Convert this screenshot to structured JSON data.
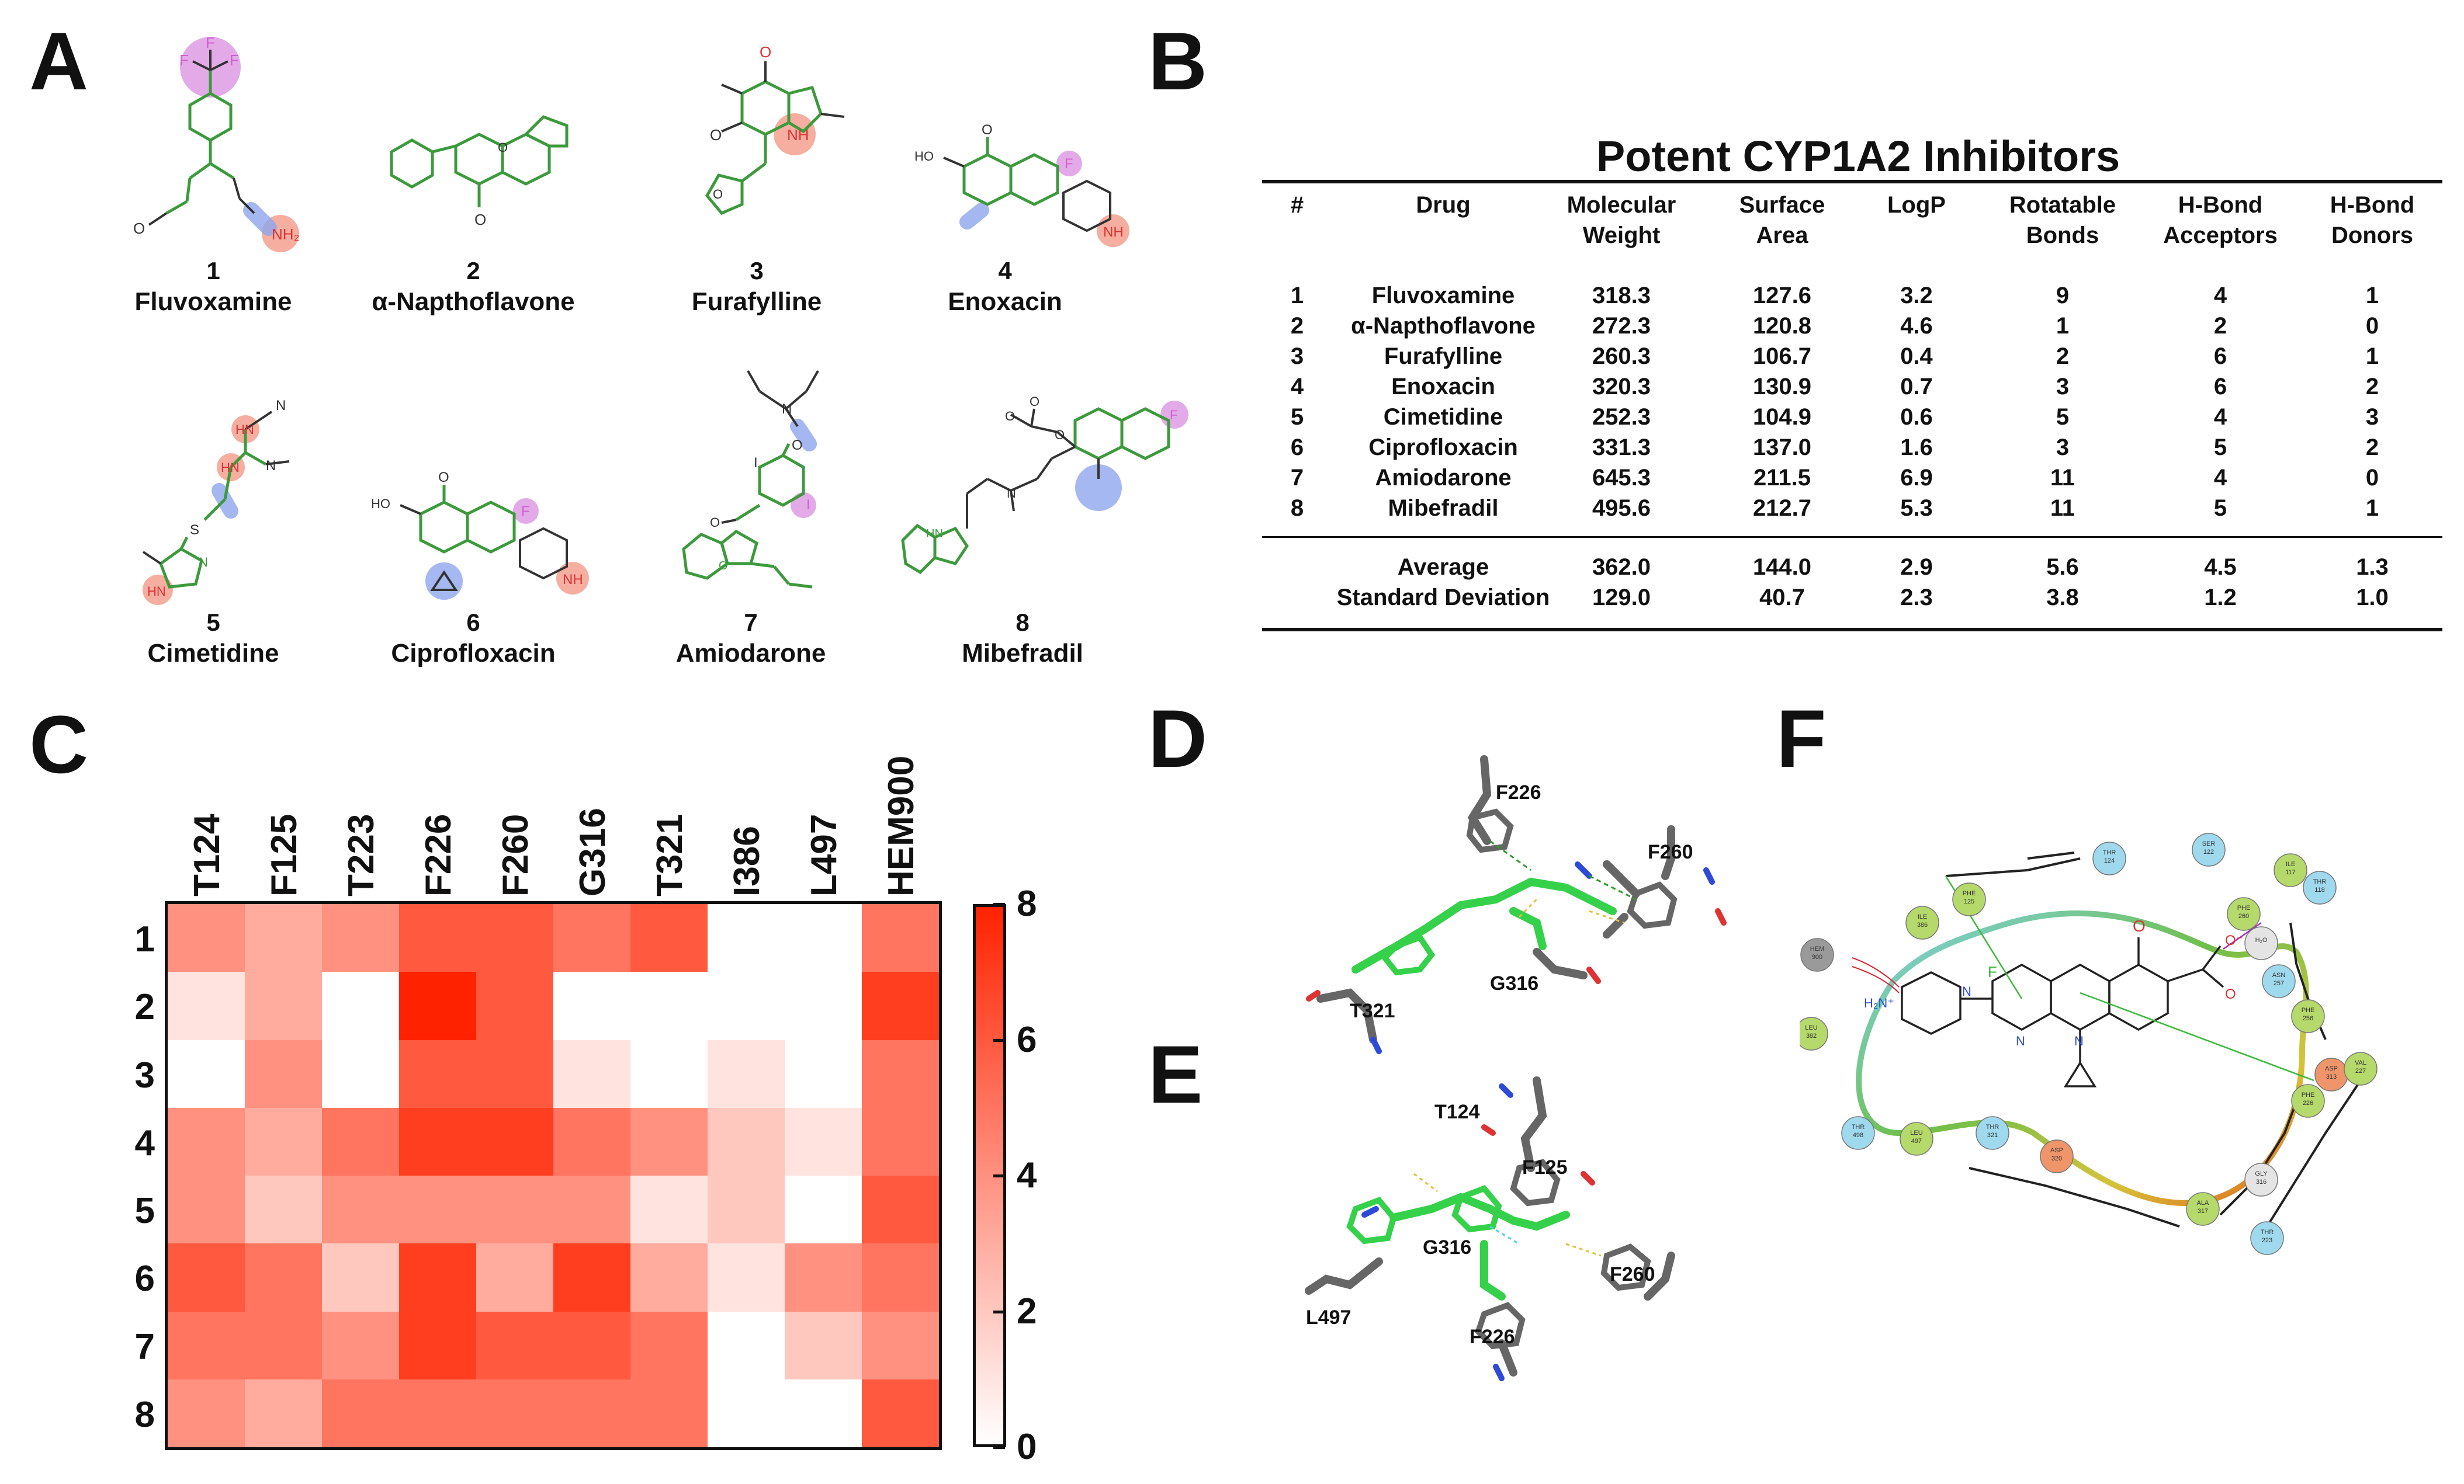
{
  "panels": {
    "a": "A",
    "b": "B",
    "c": "C",
    "d": "D",
    "e": "E",
    "f": "F"
  },
  "molecules": [
    {
      "num": "1",
      "name": "Fluvoxamine"
    },
    {
      "num": "2",
      "name": "α-Napthoflavone"
    },
    {
      "num": "3",
      "name": "Furafylline"
    },
    {
      "num": "4",
      "name": "Enoxacin"
    },
    {
      "num": "5",
      "name": "Cimetidine"
    },
    {
      "num": "6",
      "name": "Ciprofloxacin"
    },
    {
      "num": "7",
      "name": "Amiodarone"
    },
    {
      "num": "8",
      "name": "Mibefradil"
    }
  ],
  "atom_labels": {
    "F": "F",
    "NH2": "NH₂",
    "NH": "NH",
    "HN": "HN",
    "N": "N",
    "O": "O",
    "S": "S",
    "HO": "HO",
    "I": "I"
  },
  "table": {
    "title": "Potent CYP1A2 Inhibitors",
    "headers": [
      "#",
      "Drug",
      "Molecular\nWeight",
      "Surface\nArea",
      "LogP",
      "Rotatable\nBonds",
      "H-Bond\nAcceptors",
      "H-Bond\nDonors"
    ],
    "rows": [
      [
        "1",
        "Fluvoxamine",
        "318.3",
        "127.6",
        "3.2",
        "9",
        "4",
        "1"
      ],
      [
        "2",
        "α-Napthoflavone",
        "272.3",
        "120.8",
        "4.6",
        "1",
        "2",
        "0"
      ],
      [
        "3",
        "Furafylline",
        "260.3",
        "106.7",
        "0.4",
        "2",
        "6",
        "1"
      ],
      [
        "4",
        "Enoxacin",
        "320.3",
        "130.9",
        "0.7",
        "3",
        "6",
        "2"
      ],
      [
        "5",
        "Cimetidine",
        "252.3",
        "104.9",
        "0.6",
        "5",
        "4",
        "3"
      ],
      [
        "6",
        "Ciprofloxacin",
        "331.3",
        "137.0",
        "1.6",
        "3",
        "5",
        "2"
      ],
      [
        "7",
        "Amiodarone",
        "645.3",
        "211.5",
        "6.9",
        "11",
        "4",
        "0"
      ],
      [
        "8",
        "Mibefradil",
        "495.6",
        "212.7",
        "5.3",
        "11",
        "5",
        "1"
      ]
    ],
    "summary": [
      [
        "",
        "Average",
        "362.0",
        "144.0",
        "2.9",
        "5.6",
        "4.5",
        "1.3"
      ],
      [
        "",
        "Standard Deviation",
        "129.0",
        "40.7",
        "2.3",
        "3.8",
        "1.2",
        "1.0"
      ]
    ]
  },
  "chart_data": {
    "type": "heatmap",
    "columns": [
      "T124",
      "F125",
      "T223",
      "F226",
      "F260",
      "G316",
      "T321",
      "I386",
      "L497",
      "HEM900"
    ],
    "rows": [
      "1",
      "2",
      "3",
      "4",
      "5",
      "6",
      "7",
      "8"
    ],
    "values": [
      [
        4,
        3,
        4,
        6,
        6,
        5,
        6,
        0,
        0,
        5
      ],
      [
        1,
        3,
        0,
        8,
        6,
        0,
        0,
        0,
        0,
        7
      ],
      [
        0,
        4,
        0,
        6,
        6,
        1,
        0,
        1,
        0,
        5
      ],
      [
        4,
        3,
        5,
        7,
        7,
        5,
        4,
        2,
        1,
        5
      ],
      [
        4,
        2,
        4,
        4,
        4,
        4,
        1,
        2,
        0,
        6
      ],
      [
        6,
        5,
        2,
        7,
        3,
        7,
        3,
        1,
        4,
        5
      ],
      [
        5,
        5,
        4,
        7,
        6,
        6,
        5,
        0,
        2,
        4
      ],
      [
        4,
        3,
        5,
        5,
        5,
        5,
        5,
        0,
        0,
        6
      ]
    ],
    "colorbar": {
      "min": 0,
      "max": 8,
      "ticks": [
        "0",
        "2",
        "4",
        "6",
        "8"
      ]
    },
    "colors": {
      "low": "#ffffff",
      "high": "#ff2200"
    }
  },
  "panel_d": {
    "labels": [
      "F226",
      "F260",
      "T321",
      "G316"
    ]
  },
  "panel_e": {
    "labels": [
      "T124",
      "F125",
      "G316",
      "L497",
      "F260",
      "F226"
    ]
  },
  "panel_f": {
    "nodes": [
      {
        "id": "ILE\n117",
        "color": "#b5d96a"
      },
      {
        "id": "THR\n118",
        "color": "#9ed9ee"
      },
      {
        "id": "THR\n124",
        "color": "#9ed9ee"
      },
      {
        "id": "SER\n122",
        "color": "#9ed9ee"
      },
      {
        "id": "PHE\n125",
        "color": "#b5d96a"
      },
      {
        "id": "PHE\n260",
        "color": "#b5d96a"
      },
      {
        "id": "ILE\n386",
        "color": "#b5d96a"
      },
      {
        "id": "H₂O",
        "color": "#e4e4e4"
      },
      {
        "id": "ASN\n257",
        "color": "#9ed9ee"
      },
      {
        "id": "PHE\n256",
        "color": "#b5d96a"
      },
      {
        "id": "HEM\n900",
        "color": "#9a9a9a"
      },
      {
        "id": "LEU\n382",
        "color": "#b5d96a"
      },
      {
        "id": "ASP\n313",
        "color": "#f0956a"
      },
      {
        "id": "VAL\n227",
        "color": "#b5d96a"
      },
      {
        "id": "PHE\n226",
        "color": "#b5d96a"
      },
      {
        "id": "THR\n498",
        "color": "#9ed9ee"
      },
      {
        "id": "LEU\n497",
        "color": "#b5d96a"
      },
      {
        "id": "THR\n321",
        "color": "#9ed9ee"
      },
      {
        "id": "ASP\n320",
        "color": "#f0956a"
      },
      {
        "id": "GLY\n316",
        "color": "#e4e4e4"
      },
      {
        "id": "ALA\n317",
        "color": "#b5d96a"
      },
      {
        "id": "THR\n223",
        "color": "#9ed9ee"
      }
    ],
    "ligand_labels": {
      "F": "F",
      "O": "O",
      "Ominus": "O⁻",
      "N": "N",
      "H2Nplus": "H₂N⁺"
    }
  }
}
